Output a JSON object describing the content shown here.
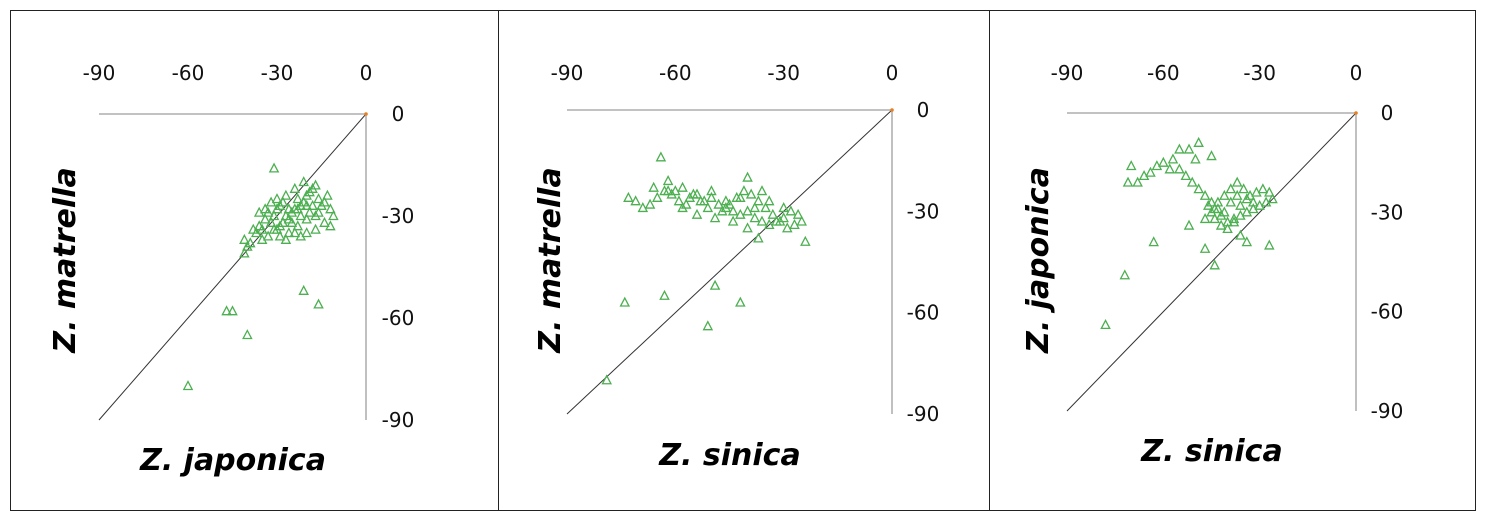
{
  "chart_data": [
    {
      "type": "scatter",
      "xlabel": "Z. japonica",
      "ylabel": "Z. matrella",
      "xlim": [
        -90,
        0
      ],
      "ylim": [
        -90,
        0
      ],
      "xticks": [
        "-90",
        "-60",
        "-30",
        "0"
      ],
      "yticks": [
        "0",
        "-30",
        "-60",
        "-90"
      ],
      "marker": "triangle",
      "marker_color": "#4caf50",
      "reference_line": "y = x",
      "points": [
        [
          -31,
          -16
        ],
        [
          -41,
          -37
        ],
        [
          -40,
          -39
        ],
        [
          -41,
          -41
        ],
        [
          -39,
          -38
        ],
        [
          -37,
          -35
        ],
        [
          -36,
          -33
        ],
        [
          -35,
          -34
        ],
        [
          -34,
          -31
        ],
        [
          -33,
          -29
        ],
        [
          -32,
          -32
        ],
        [
          -31,
          -30
        ],
        [
          -30,
          -28
        ],
        [
          -29,
          -27
        ],
        [
          -28,
          -26
        ],
        [
          -27,
          -30
        ],
        [
          -26,
          -31
        ],
        [
          -25,
          -29
        ],
        [
          -24,
          -28
        ],
        [
          -23,
          -25
        ],
        [
          -22,
          -27
        ],
        [
          -21,
          -26
        ],
        [
          -20,
          -24
        ],
        [
          -19,
          -23
        ],
        [
          -18,
          -22
        ],
        [
          -17,
          -21
        ],
        [
          -16,
          -25
        ],
        [
          -15,
          -27
        ],
        [
          -14,
          -26
        ],
        [
          -13,
          -24
        ],
        [
          -12,
          -28
        ],
        [
          -11,
          -30
        ],
        [
          -12,
          -33
        ],
        [
          -14,
          -32
        ],
        [
          -17,
          -30
        ],
        [
          -20,
          -31
        ],
        [
          -23,
          -33
        ],
        [
          -26,
          -35
        ],
        [
          -29,
          -36
        ],
        [
          -30,
          -34
        ],
        [
          -28,
          -32
        ],
        [
          -25,
          -32
        ],
        [
          -22,
          -30
        ],
        [
          -19,
          -29
        ],
        [
          -34,
          -28
        ],
        [
          -32,
          -26
        ],
        [
          -30,
          -25
        ],
        [
          -27,
          -24
        ],
        [
          -24,
          -22
        ],
        [
          -21,
          -20
        ],
        [
          -18,
          -27
        ],
        [
          -16,
          -29
        ],
        [
          -36,
          -29
        ],
        [
          -38,
          -34
        ],
        [
          -35,
          -37
        ],
        [
          -33,
          -36
        ],
        [
          -31,
          -34
        ],
        [
          -29,
          -33
        ],
        [
          -27,
          -37
        ],
        [
          -24,
          -35
        ],
        [
          -22,
          -36
        ],
        [
          -20,
          -35
        ],
        [
          -17,
          -34
        ],
        [
          -26,
          -28
        ],
        [
          -23,
          -28
        ],
        [
          -20,
          -27
        ],
        [
          -47,
          -58
        ],
        [
          -45,
          -58
        ],
        [
          -40,
          -65
        ],
        [
          -21,
          -52
        ],
        [
          -16,
          -56
        ],
        [
          -60,
          -80
        ]
      ]
    },
    {
      "type": "scatter",
      "xlabel": "Z. sinica",
      "ylabel": "Z. matrella",
      "xlim": [
        -90,
        0
      ],
      "ylim": [
        -90,
        0
      ],
      "xticks": [
        "-90",
        "-60",
        "-30",
        "0"
      ],
      "yticks": [
        "0",
        "-30",
        "-60",
        "-90"
      ],
      "marker": "triangle",
      "marker_color": "#4caf50",
      "reference_line": "y = x",
      "points": [
        [
          -64,
          -14
        ],
        [
          -62,
          -21
        ],
        [
          -60,
          -24
        ],
        [
          -58,
          -23
        ],
        [
          -56,
          -26
        ],
        [
          -54,
          -25
        ],
        [
          -52,
          -27
        ],
        [
          -50,
          -26
        ],
        [
          -48,
          -28
        ],
        [
          -46,
          -29
        ],
        [
          -44,
          -30
        ],
        [
          -42,
          -31
        ],
        [
          -40,
          -30
        ],
        [
          -38,
          -32
        ],
        [
          -36,
          -33
        ],
        [
          -34,
          -34
        ],
        [
          -32,
          -33
        ],
        [
          -30,
          -32
        ],
        [
          -28,
          -30
        ],
        [
          -26,
          -31
        ],
        [
          -25,
          -33
        ],
        [
          -27,
          -34
        ],
        [
          -29,
          -35
        ],
        [
          -31,
          -33
        ],
        [
          -33,
          -31
        ],
        [
          -35,
          -29
        ],
        [
          -37,
          -27
        ],
        [
          -39,
          -25
        ],
        [
          -41,
          -24
        ],
        [
          -43,
          -26
        ],
        [
          -45,
          -28
        ],
        [
          -47,
          -30
        ],
        [
          -49,
          -32
        ],
        [
          -51,
          -29
        ],
        [
          -53,
          -27
        ],
        [
          -55,
          -25
        ],
        [
          -57,
          -28
        ],
        [
          -59,
          -27
        ],
        [
          -61,
          -25
        ],
        [
          -63,
          -24
        ],
        [
          -65,
          -26
        ],
        [
          -67,
          -28
        ],
        [
          -69,
          -29
        ],
        [
          -71,
          -27
        ],
        [
          -73,
          -26
        ],
        [
          -66,
          -23
        ],
        [
          -62,
          -24
        ],
        [
          -58,
          -29
        ],
        [
          -54,
          -31
        ],
        [
          -50,
          -24
        ],
        [
          -46,
          -27
        ],
        [
          -42,
          -26
        ],
        [
          -38,
          -29
        ],
        [
          -34,
          -27
        ],
        [
          -30,
          -29
        ],
        [
          -40,
          -20
        ],
        [
          -36,
          -24
        ],
        [
          -44,
          -33
        ],
        [
          -40,
          -35
        ],
        [
          -37,
          -38
        ],
        [
          -24,
          -39
        ],
        [
          -49,
          -52
        ],
        [
          -63,
          -55
        ],
        [
          -74,
          -57
        ],
        [
          -51,
          -64
        ],
        [
          -42,
          -57
        ],
        [
          -79,
          -80
        ]
      ]
    },
    {
      "type": "scatter",
      "xlabel": "Z. sinica",
      "ylabel": "Z. japonica",
      "xlim": [
        -90,
        0
      ],
      "ylim": [
        -90,
        0
      ],
      "xticks": [
        "-90",
        "-60",
        "-30",
        "0"
      ],
      "yticks": [
        "0",
        "-30",
        "-60",
        "-90"
      ],
      "marker": "triangle",
      "marker_color": "#4caf50",
      "reference_line": "y = x",
      "points": [
        [
          -49,
          -9
        ],
        [
          -52,
          -11
        ],
        [
          -55,
          -11
        ],
        [
          -45,
          -13
        ],
        [
          -50,
          -14
        ],
        [
          -57,
          -14
        ],
        [
          -60,
          -15
        ],
        [
          -62,
          -16
        ],
        [
          -64,
          -18
        ],
        [
          -66,
          -19
        ],
        [
          -68,
          -21
        ],
        [
          -70,
          -16
        ],
        [
          -71,
          -21
        ],
        [
          -58,
          -17
        ],
        [
          -55,
          -17
        ],
        [
          -53,
          -19
        ],
        [
          -51,
          -21
        ],
        [
          -49,
          -23
        ],
        [
          -47,
          -25
        ],
        [
          -45,
          -27
        ],
        [
          -43,
          -29
        ],
        [
          -41,
          -30
        ],
        [
          -39,
          -27
        ],
        [
          -37,
          -25
        ],
        [
          -35,
          -23
        ],
        [
          -33,
          -25
        ],
        [
          -31,
          -24
        ],
        [
          -29,
          -23
        ],
        [
          -27,
          -24
        ],
        [
          -26,
          -26
        ],
        [
          -28,
          -27
        ],
        [
          -30,
          -28
        ],
        [
          -32,
          -29
        ],
        [
          -34,
          -30
        ],
        [
          -36,
          -31
        ],
        [
          -38,
          -32
        ],
        [
          -40,
          -33
        ],
        [
          -42,
          -31
        ],
        [
          -44,
          -29
        ],
        [
          -46,
          -28
        ],
        [
          -44,
          -32
        ],
        [
          -42,
          -34
        ],
        [
          -40,
          -35
        ],
        [
          -38,
          -33
        ],
        [
          -36,
          -28
        ],
        [
          -34,
          -26
        ],
        [
          -32,
          -27
        ],
        [
          -37,
          -21
        ],
        [
          -39,
          -23
        ],
        [
          -41,
          -25
        ],
        [
          -43,
          -27
        ],
        [
          -45,
          -30
        ],
        [
          -47,
          -32
        ],
        [
          -27,
          -40
        ],
        [
          -63,
          -39
        ],
        [
          -47,
          -41
        ],
        [
          -44,
          -46
        ],
        [
          -36,
          -37
        ],
        [
          -34,
          -39
        ],
        [
          -52,
          -34
        ],
        [
          -72,
          -49
        ],
        [
          -78,
          -64
        ]
      ]
    }
  ]
}
